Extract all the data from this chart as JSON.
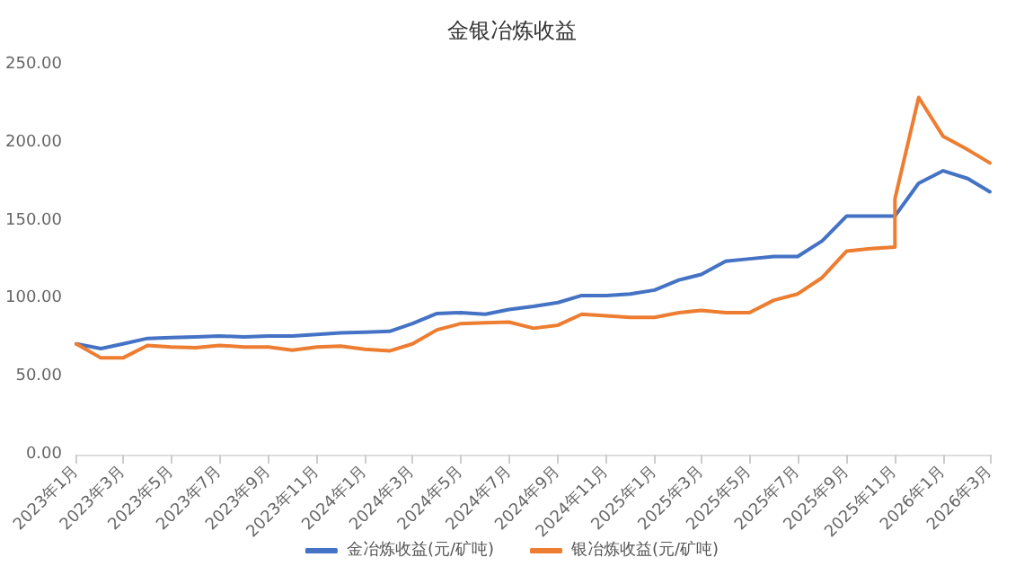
{
  "chart_data": {
    "type": "line",
    "title": "金银冶炼收益",
    "x": [
      "2023-01",
      "2023-02",
      "2023-03",
      "2023-04",
      "2023-05",
      "2023-06",
      "2023-07",
      "2023-08",
      "2023-09",
      "2023-10",
      "2023-11",
      "2023-12",
      "2024-01",
      "2024-02",
      "2024-03",
      "2024-04",
      "2024-05",
      "2024-06",
      "2024-07",
      "2024-08",
      "2024-09",
      "2024-10",
      "2024-11",
      "2024-12",
      "2025-01",
      "2025-02",
      "2025-03",
      "2025-04",
      "2025-05",
      "2025-06",
      "2025-07",
      "2025-08",
      "2025-09",
      "2025-10",
      "2025-11",
      "2025-11",
      "2025-12",
      "2026-01",
      "2026-02",
      "2026-03"
    ],
    "series": [
      {
        "name": "金冶炼收益(元/矿吨)",
        "color": "#4472c4",
        "values": [
          71,
          68,
          71,
          74.5,
          75,
          75.5,
          76,
          75.5,
          76,
          76,
          77,
          78,
          78.5,
          79,
          84,
          90.5,
          91,
          90,
          93,
          95,
          97.5,
          102,
          102,
          103,
          105.5,
          112,
          115.5,
          124,
          125.5,
          127,
          127,
          137,
          153,
          153,
          153,
          153,
          174,
          182,
          177,
          168.5
        ]
      },
      {
        "name": "银冶炼收益(元/矿吨)",
        "color": "#ed7d31",
        "values": [
          71,
          62,
          62,
          70,
          69,
          68.5,
          70,
          69,
          69,
          67,
          69,
          69.5,
          67.5,
          66.5,
          71,
          80,
          84,
          84.5,
          85,
          81,
          83,
          90,
          89,
          88,
          88,
          91,
          92.5,
          91,
          91,
          99,
          103,
          113.5,
          130.5,
          132,
          133,
          164,
          229,
          204,
          195.5,
          187
        ]
      }
    ],
    "xlim": [
      "2023-01",
      "2026-03"
    ],
    "xticks": [
      {
        "value": "2023-01",
        "label": "2023年1月"
      },
      {
        "value": "2023-03",
        "label": "2023年3月"
      },
      {
        "value": "2023-05",
        "label": "2023年5月"
      },
      {
        "value": "2023-07",
        "label": "2023年7月"
      },
      {
        "value": "2023-09",
        "label": "2023年9月"
      },
      {
        "value": "2023-11",
        "label": "2023年11月"
      },
      {
        "value": "2024-01",
        "label": "2024年1月"
      },
      {
        "value": "2024-03",
        "label": "2024年3月"
      },
      {
        "value": "2024-05",
        "label": "2024年5月"
      },
      {
        "value": "2024-07",
        "label": "2024年7月"
      },
      {
        "value": "2024-09",
        "label": "2024年9月"
      },
      {
        "value": "2024-11",
        "label": "2024年11月"
      },
      {
        "value": "2025-01",
        "label": "2025年1月"
      },
      {
        "value": "2025-03",
        "label": "2025年3月"
      },
      {
        "value": "2025-05",
        "label": "2025年5月"
      },
      {
        "value": "2025-07",
        "label": "2025年7月"
      },
      {
        "value": "2025-09",
        "label": "2025年9月"
      },
      {
        "value": "2025-11",
        "label": "2025年11月"
      },
      {
        "value": "2026-01",
        "label": "2026年1月"
      },
      {
        "value": "2026-03",
        "label": "2026年3月"
      }
    ],
    "ylim": [
      0,
      250
    ],
    "yticks": [
      {
        "value": 0,
        "label": "0.00"
      },
      {
        "value": 50,
        "label": "50.00"
      },
      {
        "value": 100,
        "label": "100.00"
      },
      {
        "value": 150,
        "label": "150.00"
      },
      {
        "value": 200,
        "label": "200.00"
      },
      {
        "value": 250,
        "label": "250.00"
      }
    ],
    "grid": false,
    "legend": "bottom",
    "marker": "none",
    "line_style": "solid"
  }
}
